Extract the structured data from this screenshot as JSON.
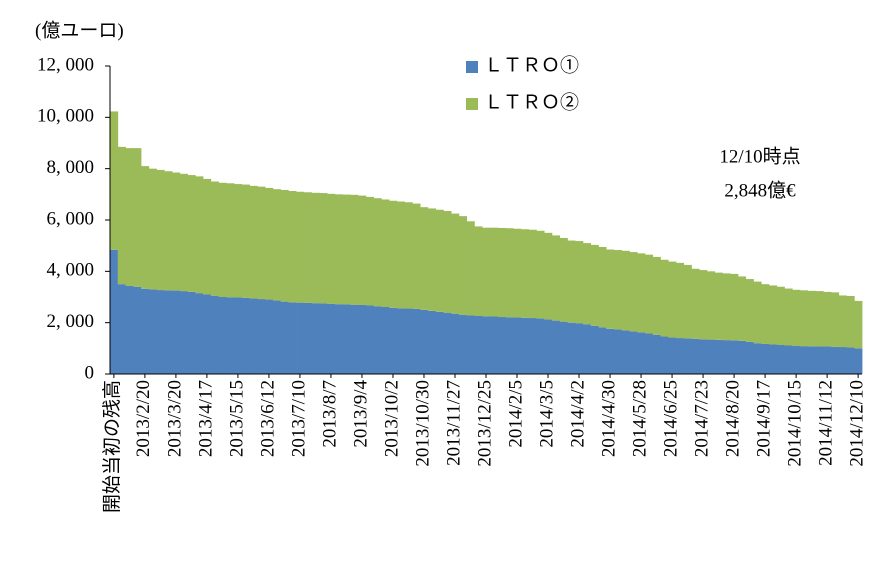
{
  "chart_data": {
    "type": "stacked-step-area",
    "y_axis_label": "(億ユーロ)",
    "annotations": [
      "12/10時点",
      "2,848億€"
    ],
    "categories": [
      "開始当初の残高",
      null,
      null,
      null,
      "2013/2/20",
      null,
      null,
      null,
      "2013/3/20",
      null,
      null,
      null,
      "2013/4/17",
      null,
      null,
      null,
      "2013/5/15",
      null,
      null,
      null,
      "2013/6/12",
      null,
      null,
      null,
      "2013/7/10",
      null,
      null,
      null,
      "2013/8/7",
      null,
      null,
      null,
      "2013/9/4",
      null,
      null,
      null,
      "2013/10/2",
      null,
      null,
      null,
      "2013/10/30",
      null,
      null,
      null,
      "2013/11/27",
      null,
      null,
      null,
      "2013/12/25",
      null,
      null,
      null,
      "2014/2/5",
      null,
      null,
      null,
      "2014/3/5",
      null,
      null,
      null,
      "2014/4/2",
      null,
      null,
      null,
      "2014/4/30",
      null,
      null,
      null,
      "2014/5/28",
      null,
      null,
      null,
      "2014/6/25",
      null,
      null,
      null,
      "2014/7/23",
      null,
      null,
      null,
      "2014/8/20",
      null,
      null,
      null,
      "2014/9/17",
      null,
      null,
      null,
      "2014/10/15",
      null,
      null,
      null,
      "2014/11/12",
      null,
      null,
      null,
      "2014/12/10"
    ],
    "series": [
      {
        "name": "ＬＴＲＯ①",
        "color": "#4f81bd",
        "values": [
          4840,
          3500,
          3430,
          3400,
          3320,
          3300,
          3270,
          3260,
          3250,
          3230,
          3200,
          3150,
          3100,
          3050,
          3000,
          2990,
          2980,
          2970,
          2940,
          2920,
          2900,
          2870,
          2820,
          2790,
          2780,
          2770,
          2760,
          2750,
          2730,
          2720,
          2710,
          2700,
          2690,
          2670,
          2640,
          2610,
          2580,
          2560,
          2550,
          2540,
          2500,
          2460,
          2420,
          2390,
          2350,
          2310,
          2280,
          2260,
          2250,
          2240,
          2220,
          2210,
          2200,
          2190,
          2180,
          2160,
          2130,
          2080,
          2040,
          2000,
          1980,
          1940,
          1880,
          1820,
          1760,
          1740,
          1700,
          1660,
          1620,
          1580,
          1530,
          1460,
          1420,
          1400,
          1390,
          1370,
          1350,
          1340,
          1330,
          1320,
          1310,
          1290,
          1250,
          1200,
          1170,
          1150,
          1130,
          1110,
          1090,
          1085,
          1080,
          1075,
          1070,
          1060,
          1050,
          1040,
          1000
        ]
      },
      {
        "name": "ＬＴＲＯ②",
        "color": "#9bbb59",
        "values": [
          5390,
          5350,
          5370,
          5400,
          4780,
          4700,
          4680,
          4640,
          4600,
          4570,
          4550,
          4550,
          4500,
          4450,
          4450,
          4440,
          4420,
          4410,
          4390,
          4380,
          4350,
          4330,
          4350,
          4340,
          4320,
          4310,
          4300,
          4300,
          4290,
          4280,
          4280,
          4280,
          4260,
          4230,
          4210,
          4190,
          4170,
          4160,
          4140,
          4100,
          4000,
          3990,
          3980,
          3960,
          3900,
          3840,
          3670,
          3490,
          3450,
          3460,
          3470,
          3470,
          3460,
          3450,
          3440,
          3420,
          3370,
          3320,
          3260,
          3200,
          3200,
          3160,
          3150,
          3130,
          3090,
          3090,
          3100,
          3090,
          3080,
          3070,
          3030,
          2990,
          2960,
          2930,
          2860,
          2730,
          2700,
          2660,
          2620,
          2600,
          2590,
          2510,
          2450,
          2400,
          2330,
          2300,
          2270,
          2220,
          2190,
          2175,
          2160,
          2155,
          2130,
          2120,
          2010,
          2000,
          1848
        ]
      }
    ],
    "ylim": [
      0,
      12000
    ],
    "yticks": [
      0,
      {
        "value": 2000,
        "label": "2, 000"
      },
      {
        "value": 4000,
        "label": "4, 000"
      },
      {
        "value": 6000,
        "label": "6, 000"
      },
      {
        "value": 8000,
        "label": "8, 000"
      },
      {
        "value": 10000,
        "label": "10, 000"
      },
      {
        "value": 12000,
        "label": "12, 000"
      }
    ],
    "grid": false
  }
}
